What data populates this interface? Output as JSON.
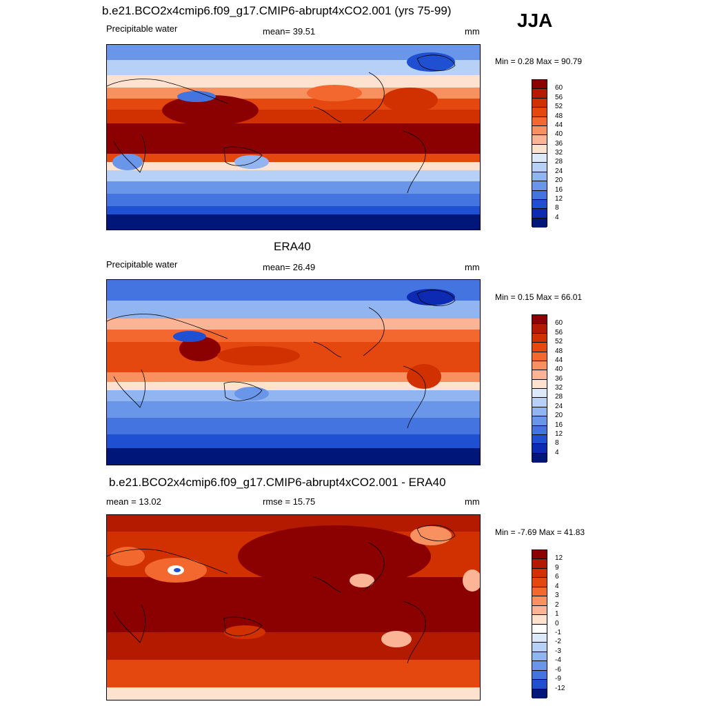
{
  "season": "JJA",
  "panels": [
    {
      "title": "b.e21.BCO2x4cmip6.f09_g17.CMIP6-abrupt4xCO2.001 (yrs 75-99)",
      "left_label": "Precipitable water",
      "center_label": "mean=  39.51",
      "right_label": "mm",
      "minmax": "Min =   0.28 Max =  90.79",
      "colorbar": {
        "labels": [
          "60",
          "56",
          "52",
          "48",
          "44",
          "40",
          "36",
          "32",
          "28",
          "24",
          "20",
          "16",
          "12",
          "8",
          "4"
        ],
        "colors": [
          "#8b0000",
          "#b31a00",
          "#d13000",
          "#e5480f",
          "#f2682e",
          "#f89060",
          "#fbb596",
          "#fde2cf",
          "#dce9f8",
          "#b7d0f5",
          "#90b5f0",
          "#6a96ea",
          "#4474e0",
          "#2050d2",
          "#0c2bb2",
          "#001678"
        ]
      }
    },
    {
      "title": "ERA40",
      "left_label": "Precipitable water",
      "center_label": "mean=  26.49",
      "right_label": "mm",
      "minmax": "Min =   0.15 Max =  66.01",
      "colorbar": {
        "labels": [
          "60",
          "56",
          "52",
          "48",
          "44",
          "40",
          "36",
          "32",
          "28",
          "24",
          "20",
          "16",
          "12",
          "8",
          "4"
        ],
        "colors": [
          "#8b0000",
          "#b31a00",
          "#d13000",
          "#e5480f",
          "#f2682e",
          "#f89060",
          "#fbb596",
          "#fde2cf",
          "#dce9f8",
          "#b7d0f5",
          "#90b5f0",
          "#6a96ea",
          "#4474e0",
          "#2050d2",
          "#0c2bb2",
          "#001678"
        ]
      }
    },
    {
      "title": "b.e21.BCO2x4cmip6.f09_g17.CMIP6-abrupt4xCO2.001 - ERA40",
      "left_label": "mean =  13.02",
      "center_label": "rmse =  15.75",
      "right_label": "mm",
      "minmax": "Min =  -7.69 Max =  41.83",
      "colorbar": {
        "labels": [
          "12",
          "9",
          "6",
          "4",
          "3",
          "2",
          "1",
          "0",
          "-1",
          "-2",
          "-3",
          "-4",
          "-6",
          "-9",
          "-12"
        ],
        "colors": [
          "#8b0000",
          "#b31a00",
          "#d13000",
          "#e5480f",
          "#f2682e",
          "#f89060",
          "#fbb596",
          "#fde2cf",
          "#ffffff",
          "#dce9f8",
          "#b7d0f5",
          "#90b5f0",
          "#6a96ea",
          "#4474e0",
          "#2050d2",
          "#001678"
        ]
      }
    }
  ]
}
